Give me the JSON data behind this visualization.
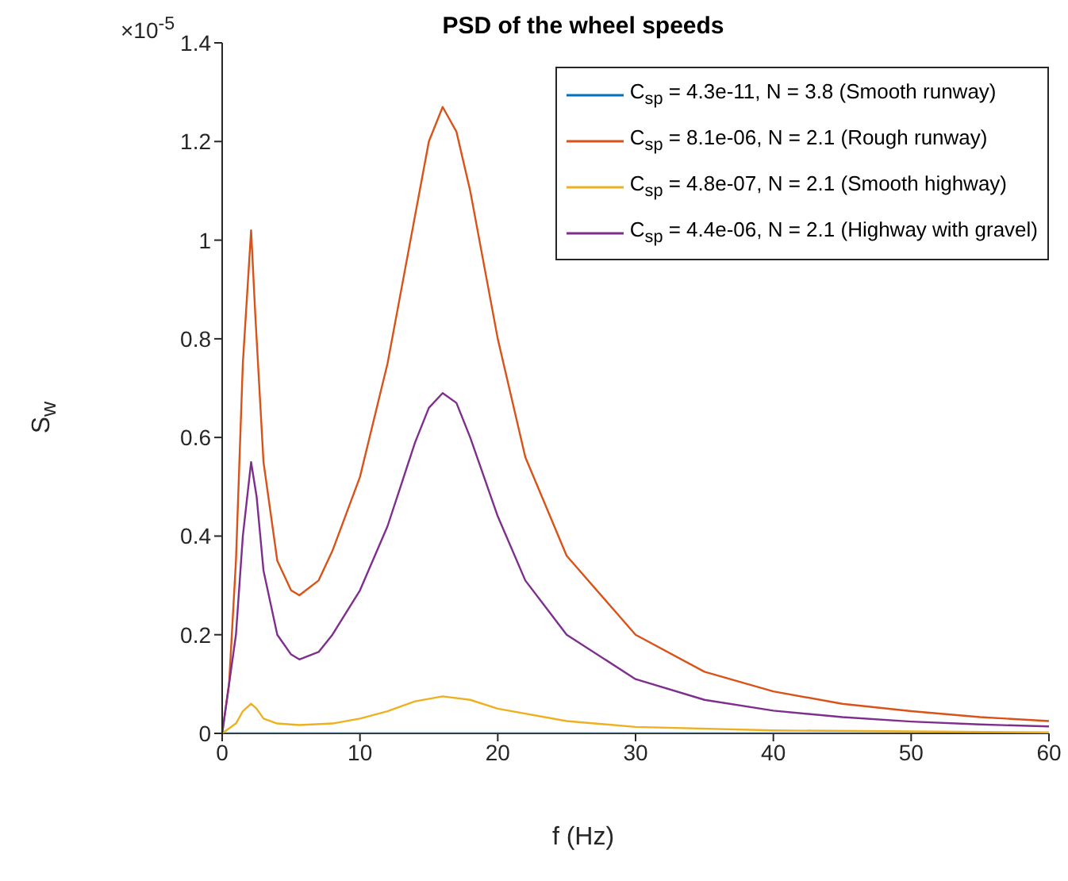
{
  "chart_data": {
    "type": "line",
    "title": "PSD of the wheel speeds",
    "xlabel": "f (Hz)",
    "ylabel": "S$_{w}$",
    "annotations": [
      "×10$^{-5}$"
    ],
    "xlim": [
      0,
      60
    ],
    "xticks": [
      0,
      10,
      20,
      30,
      40,
      50,
      60
    ],
    "ylim": [
      0,
      1.4
    ],
    "yticks": [
      0,
      0.2,
      0.4,
      0.6,
      0.8,
      1,
      1.2,
      1.4
    ],
    "grid": false,
    "legend": "top right",
    "series": [
      {
        "name": "C$_{sp}$ = 4.3e-11, N = 3.8 (Smooth runway)",
        "color": "#0072bd",
        "x": [
          0,
          10,
          20,
          30,
          40,
          50,
          60
        ],
        "values": [
          0,
          0,
          0,
          0,
          0,
          0,
          0
        ]
      },
      {
        "name": "C$_{sp}$ = 8.1e-06, N = 2.1 (Rough runway)",
        "color": "#d95319",
        "x": [
          0,
          0.5,
          1,
          1.5,
          1.9,
          2.1,
          2.4,
          3,
          4,
          5,
          5.6,
          7,
          8,
          10,
          12,
          14,
          15,
          16,
          17,
          18,
          20,
          22,
          25,
          30,
          35,
          40,
          45,
          50,
          55,
          60
        ],
        "values": [
          0,
          0.1,
          0.35,
          0.75,
          0.93,
          1.02,
          0.85,
          0.55,
          0.35,
          0.29,
          0.28,
          0.31,
          0.37,
          0.52,
          0.75,
          1.05,
          1.2,
          1.27,
          1.22,
          1.1,
          0.8,
          0.56,
          0.36,
          0.2,
          0.125,
          0.085,
          0.06,
          0.045,
          0.033,
          0.025
        ]
      },
      {
        "name": "C$_{sp}$ = 4.8e-07, N = 2.1 (Smooth highway)",
        "color": "#edb120",
        "x": [
          0,
          1,
          1.5,
          2.1,
          2.5,
          3,
          4,
          5.6,
          8,
          10,
          12,
          14,
          16,
          18,
          20,
          25,
          30,
          40,
          50,
          60
        ],
        "values": [
          0,
          0.02,
          0.045,
          0.06,
          0.05,
          0.03,
          0.02,
          0.017,
          0.02,
          0.03,
          0.045,
          0.065,
          0.075,
          0.068,
          0.05,
          0.025,
          0.013,
          0.006,
          0.004,
          0.002
        ]
      },
      {
        "name": "C$_{sp}$ = 4.4e-06, N = 2.1 (Highway with gravel)",
        "color": "#7e2f8e",
        "x": [
          0,
          1,
          1.5,
          2.1,
          2.5,
          3,
          4,
          5,
          5.6,
          7,
          8,
          10,
          12,
          14,
          15,
          16,
          17,
          18,
          20,
          22,
          25,
          30,
          35,
          40,
          45,
          50,
          55,
          60
        ],
        "values": [
          0,
          0.2,
          0.4,
          0.55,
          0.48,
          0.33,
          0.2,
          0.16,
          0.15,
          0.165,
          0.2,
          0.29,
          0.42,
          0.59,
          0.66,
          0.69,
          0.67,
          0.6,
          0.44,
          0.31,
          0.2,
          0.11,
          0.068,
          0.046,
          0.033,
          0.024,
          0.018,
          0.014
        ]
      }
    ]
  }
}
